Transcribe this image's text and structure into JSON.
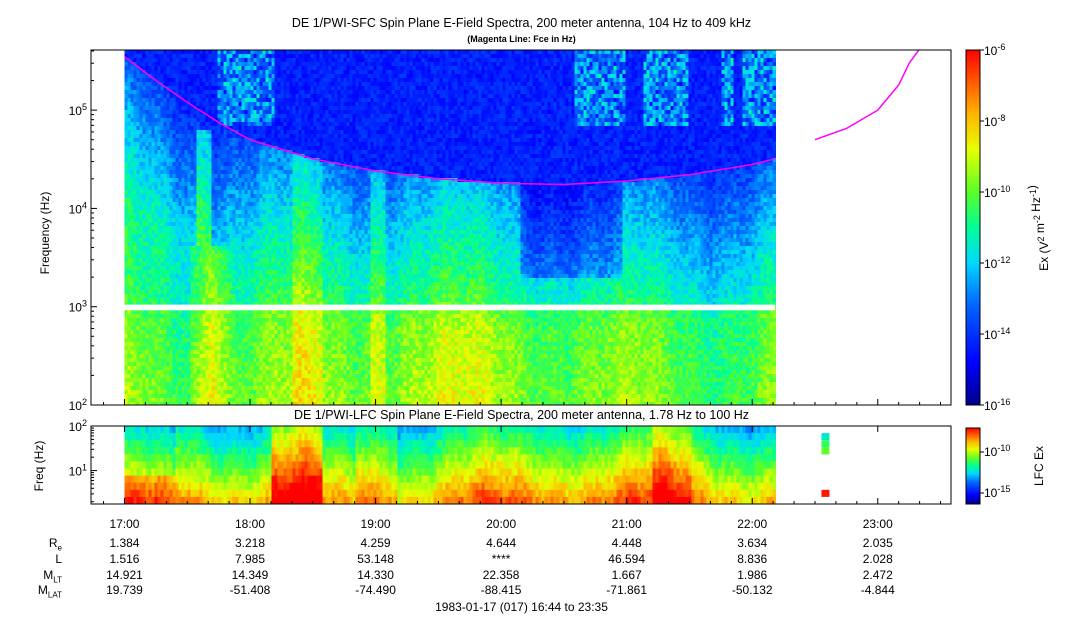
{
  "chart_data": [
    {
      "type": "heatmap",
      "title": "DE 1/PWI-SFC  Spin Plane E-Field Spectra, 200 meter antenna, 104 Hz to 409 kHz",
      "subtitle": "(Magenta Line: Fce in Hz)",
      "ylabel": "Frequency (Hz)",
      "yscale": "log",
      "ylim": [
        100,
        409000
      ],
      "ytick_labels": [
        "10^2",
        "10^3",
        "10^4",
        "10^5"
      ],
      "yticks": [
        100,
        1000,
        10000,
        100000
      ],
      "xlim": [
        "16:44",
        "23:35"
      ],
      "data_coverage": [
        "17:00",
        "22:11"
      ],
      "data_gap_hz": [
        920,
        1050
      ],
      "colorbar": {
        "label": "Ex (V^2 m^-2 Hz^-1)",
        "scale": "log",
        "range": [
          1e-16,
          1e-06
        ],
        "tick_labels": [
          "10^-6",
          "10^-8",
          "10^-10",
          "10^-12",
          "10^-14",
          "10^-16"
        ],
        "ticks": [
          1e-06,
          1e-08,
          1e-10,
          1e-12,
          1e-14,
          1e-16
        ]
      },
      "fce_line": {
        "color": "#ff00ff",
        "points": [
          [
            "17:00",
            350000
          ],
          [
            "17:15",
            200000
          ],
          [
            "17:30",
            120000
          ],
          [
            "17:45",
            75000
          ],
          [
            "18:00",
            50000
          ],
          [
            "18:30",
            32000
          ],
          [
            "19:00",
            24000
          ],
          [
            "19:30",
            20000
          ],
          [
            "20:00",
            18000
          ],
          [
            "20:30",
            17500
          ],
          [
            "21:00",
            19000
          ],
          [
            "21:30",
            22000
          ],
          [
            "22:00",
            28000
          ],
          [
            "22:11",
            32000
          ]
        ],
        "points_second_segment": [
          [
            "22:30",
            50000
          ],
          [
            "22:45",
            65000
          ],
          [
            "23:00",
            100000
          ],
          [
            "23:10",
            180000
          ],
          [
            "23:15",
            300000
          ],
          [
            "23:20",
            420000
          ]
        ]
      }
    },
    {
      "type": "heatmap",
      "title": "DE 1/PWI-LFC  Spin Plane E-Field Spectra, 200 meter antenna, 1.78 Hz to 100 Hz",
      "ylabel": "Freq (Hz)",
      "yscale": "log",
      "ylim": [
        1.78,
        100
      ],
      "ytick_labels": [
        "10^1",
        "10^2"
      ],
      "yticks": [
        10,
        100
      ],
      "xlim": [
        "16:44",
        "23:35"
      ],
      "data_coverage": [
        "17:00",
        "22:11"
      ],
      "colorbar": {
        "label": "LFC Ex",
        "scale": "log",
        "tick_labels": [
          "10^-10",
          "10^-15"
        ],
        "ticks": [
          1e-10,
          1e-15
        ]
      }
    }
  ],
  "ephemeris": {
    "times": [
      "17:00",
      "18:00",
      "19:00",
      "20:00",
      "21:00",
      "22:00",
      "23:00"
    ],
    "rows": [
      {
        "label": "R",
        "sub": "e",
        "values": [
          "1.384",
          "3.218",
          "4.259",
          "4.644",
          "4.448",
          "3.634",
          "2.035"
        ]
      },
      {
        "label": "L",
        "sub": "",
        "values": [
          "1.516",
          "7.985",
          "53.148",
          "****",
          "46.594",
          "8.836",
          "2.028"
        ]
      },
      {
        "label": "M",
        "sub": "LT",
        "values": [
          "14.921",
          "14.349",
          "14.330",
          "22.358",
          "1.667",
          "1.986",
          "2.472"
        ]
      },
      {
        "label": "M",
        "sub": "LAT",
        "values": [
          "19.739",
          "-51.408",
          "-74.490",
          "-88.415",
          "-71.861",
          "-50.132",
          "-4.844"
        ]
      }
    ]
  },
  "footer": "1983-01-17 (017) 16:44 to 23:35",
  "colors": {
    "fce_line": "#ff00ff",
    "axes": "#000000",
    "background": "#ffffff"
  }
}
